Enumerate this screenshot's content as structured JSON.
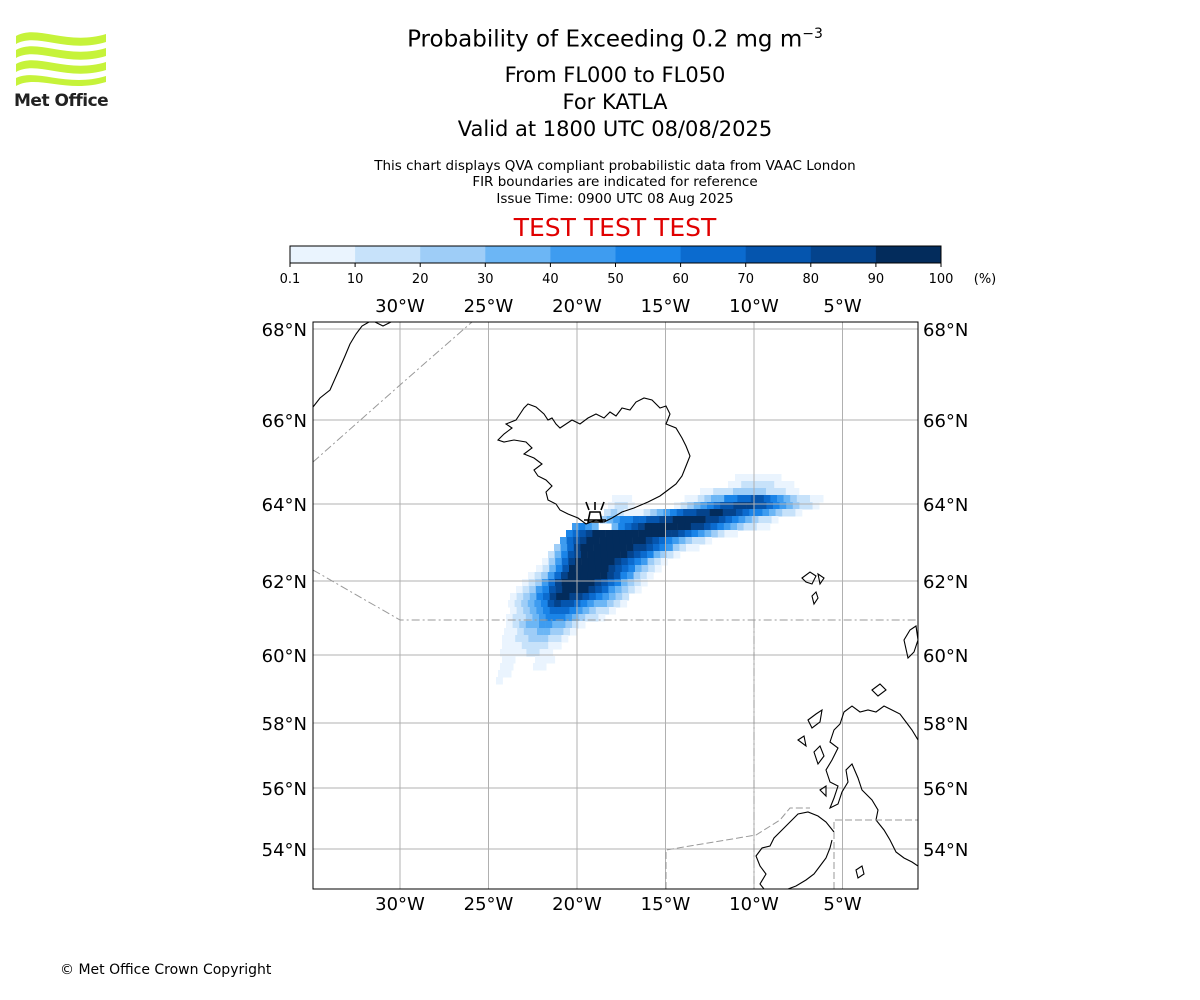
{
  "header": {
    "logo_text": "Met Office",
    "title_main": "Probability of Exceeding 0.2 mg m",
    "title_sup": "−3",
    "flight_levels": "From FL000 to FL050",
    "volcano": "For KATLA",
    "valid": "Valid at 1800 UTC 08/08/2025",
    "note1": "This chart displays QVA compliant probabilistic data from VAAC London",
    "note2": "FIR boundaries are indicated for reference",
    "issue": "Issue Time: 0900 UTC 08 Aug 2025",
    "test_banner": "TEST TEST TEST"
  },
  "colorbar": {
    "ticks": [
      "0.1",
      "10",
      "20",
      "30",
      "40",
      "50",
      "60",
      "70",
      "80",
      "90",
      "100"
    ],
    "unit": "(%)",
    "colors": [
      "#eaf4fe",
      "#c7e2fa",
      "#9ecdf7",
      "#6cb6f5",
      "#3e9cf0",
      "#1a84e8",
      "#0b6bcf",
      "#0555ae",
      "#04438c",
      "#032c5c"
    ]
  },
  "map": {
    "lon_labels": [
      "30°W",
      "25°W",
      "20°W",
      "15°W",
      "10°W",
      "5°W"
    ],
    "lat_labels": [
      "68°N",
      "66°N",
      "64°N",
      "62°N",
      "60°N",
      "58°N",
      "56°N",
      "54°N"
    ],
    "volcano_marker": "volcano-icon"
  },
  "footer": {
    "copyright": "© Met Office Crown Copyright"
  }
}
